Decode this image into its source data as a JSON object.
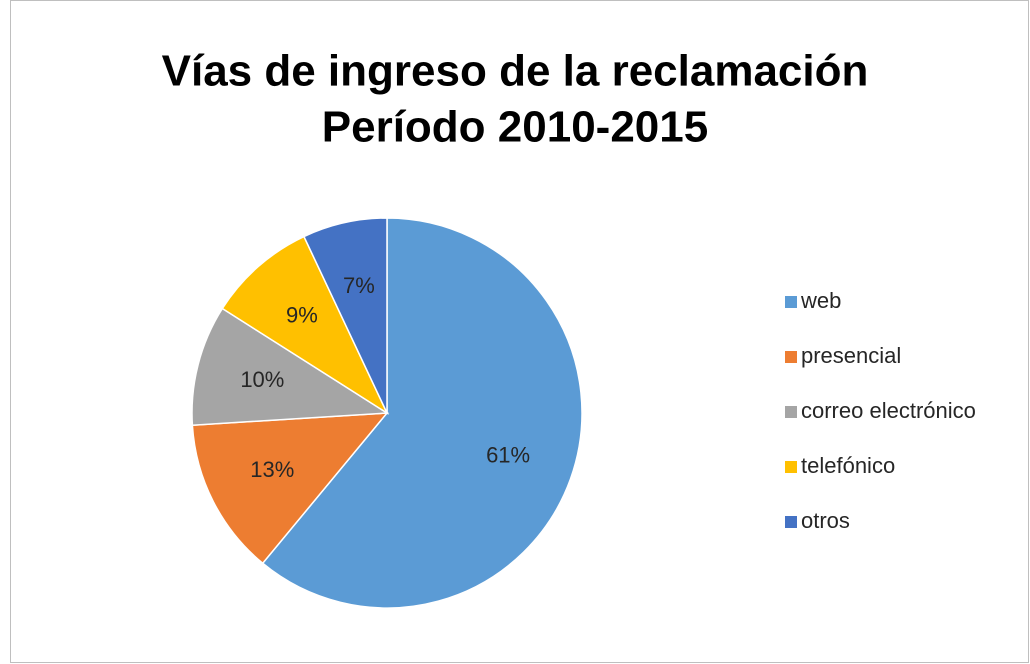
{
  "chart_data": {
    "type": "pie",
    "title": [
      "Vías de ingreso de la reclamación",
      "Período 2010-2015"
    ],
    "categories": [
      "web",
      "presencial",
      "correo electrónico",
      "telefónico",
      "otros"
    ],
    "values": [
      61,
      13,
      10,
      9,
      7
    ],
    "value_labels": [
      "61%",
      "13%",
      "10%",
      "9%",
      "7%"
    ],
    "colors": [
      "#5b9bd5",
      "#ed7d31",
      "#a5a5a5",
      "#ffc000",
      "#4472c4"
    ],
    "legend": "right"
  }
}
